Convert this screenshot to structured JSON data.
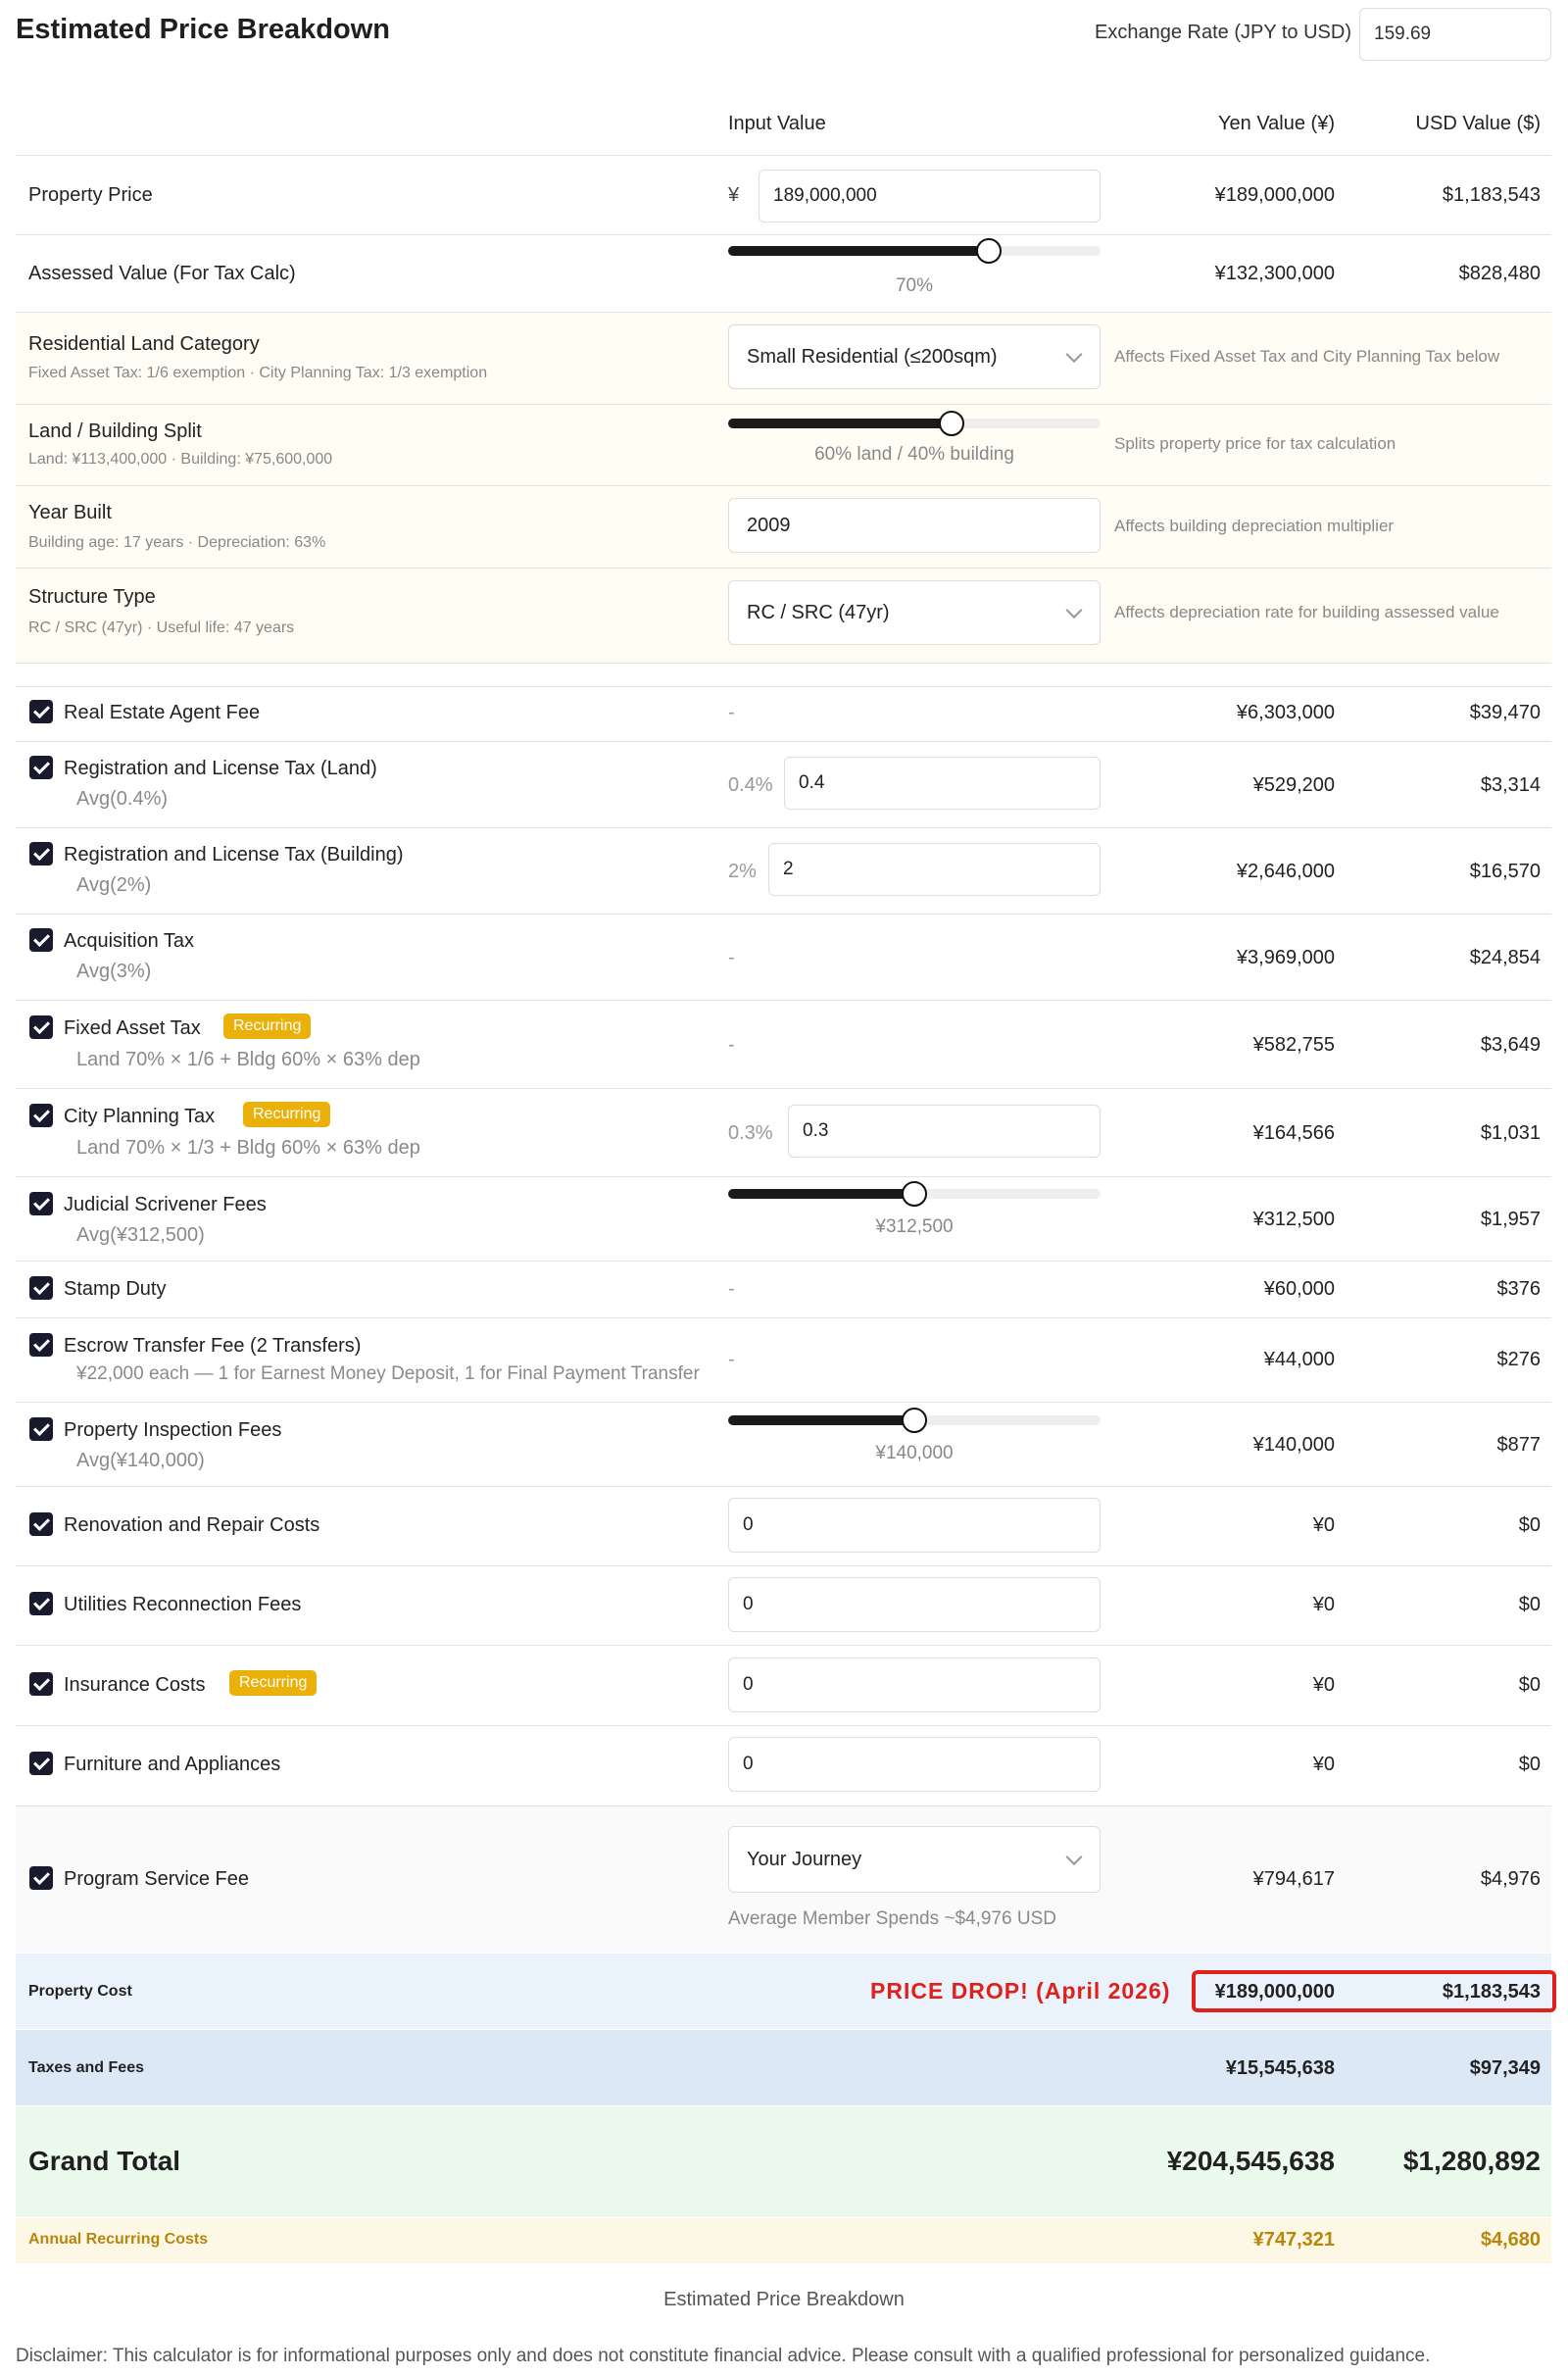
{
  "header": {
    "title": "Estimated Price Breakdown",
    "exchange_rate_label": "Exchange Rate (JPY to USD)",
    "exchange_rate_value": "159.69"
  },
  "columns": {
    "input": "Input Value",
    "yen": "Yen Value (¥)",
    "usd": "USD Value ($)"
  },
  "property_price": {
    "label": "Property Price",
    "currency_symbol": "¥",
    "value": "189,000,000",
    "yen": "¥189,000,000",
    "usd": "$1,183,543"
  },
  "assessed_value": {
    "label": "Assessed Value (For Tax Calc)",
    "slider_label": "70%",
    "slider_level": 0.7,
    "yen": "¥132,300,000",
    "usd": "$828,480"
  },
  "land_category": {
    "label": "Residential Land Category",
    "sub": "Fixed Asset Tax: 1/6 exemption · City Planning Tax: 1/3 exemption",
    "selected": "Small Residential (≤200sqm)",
    "note": "Affects Fixed Asset Tax and City Planning Tax below"
  },
  "land_split": {
    "label": "Land / Building Split",
    "sub": "Land: ¥113,400,000 · Building: ¥75,600,000",
    "slider_label": "60% land / 40% building",
    "slider_level": 0.6,
    "note": "Splits property price for tax calculation"
  },
  "year_built": {
    "label": "Year Built",
    "sub": "Building age: 17 years · Depreciation: 63%",
    "value": "2009",
    "note": "Affects building depreciation multiplier"
  },
  "structure": {
    "label": "Structure Type",
    "sub": "RC / SRC (47yr) · Useful life: 47 years",
    "selected": "RC / SRC (47yr)",
    "note": "Affects depreciation rate for building assessed value"
  },
  "fees": [
    {
      "label": "Real Estate Agent Fee",
      "dash": "-",
      "yen": "¥6,303,000",
      "usd": "$39,470"
    },
    {
      "label": "Registration and License Tax (Land)",
      "sub": "Avg(0.4%)",
      "pct": "0.4%",
      "value": "0.4",
      "yen": "¥529,200",
      "usd": "$3,314"
    },
    {
      "label": "Registration and License Tax (Building)",
      "sub": "Avg(2%)",
      "pct": "2%",
      "value": "2",
      "yen": "¥2,646,000",
      "usd": "$16,570"
    },
    {
      "label": "Acquisition Tax",
      "sub": "Avg(3%)",
      "dash": "-",
      "yen": "¥3,969,000",
      "usd": "$24,854"
    },
    {
      "label": "Fixed Asset Tax",
      "badge": "Recurring",
      "sub": "Land 70% × 1/6 + Bldg 60% × 63% dep",
      "dash": "-",
      "yen": "¥582,755",
      "usd": "$3,649"
    },
    {
      "label": "City Planning Tax",
      "badge": "Recurring",
      "sub": "Land 70% × 1/3 + Bldg 60% × 63% dep",
      "pct": "0.3%",
      "value": "0.3",
      "yen": "¥164,566",
      "usd": "$1,031"
    },
    {
      "label": "Judicial Scrivener Fees",
      "sub": "Avg(¥312,500)",
      "slider_label": "¥312,500",
      "slider_level": 0.5,
      "yen": "¥312,500",
      "usd": "$1,957"
    },
    {
      "label": "Stamp Duty",
      "dash": "-",
      "yen": "¥60,000",
      "usd": "$376"
    },
    {
      "label": "Escrow Transfer Fee (2 Transfers)",
      "sub": "¥22,000 each — 1 for Earnest Money Deposit, 1 for Final Payment Transfer",
      "dash": "-",
      "yen": "¥44,000",
      "usd": "$276"
    },
    {
      "label": "Property Inspection Fees",
      "sub": "Avg(¥140,000)",
      "slider_label": "¥140,000",
      "slider_level": 0.5,
      "yen": "¥140,000",
      "usd": "$877"
    },
    {
      "label": "Renovation and Repair Costs",
      "value": "0",
      "yen": "¥0",
      "usd": "$0"
    },
    {
      "label": "Utilities Reconnection Fees",
      "value": "0",
      "yen": "¥0",
      "usd": "$0"
    },
    {
      "label": "Insurance Costs",
      "badge": "Recurring",
      "value": "0",
      "yen": "¥0",
      "usd": "$0"
    },
    {
      "label": "Furniture and Appliances",
      "value": "0",
      "yen": "¥0",
      "usd": "$0"
    },
    {
      "label": "Program Service Fee",
      "selected": "Your Journey",
      "sub": "Average Member Spends ~$4,976 USD",
      "yen": "¥794,617",
      "usd": "$4,976"
    }
  ],
  "summary": {
    "property_cost": {
      "label": "Property Cost",
      "promo": "PRICE DROP! (April 2026)",
      "yen": "¥189,000,000",
      "usd": "$1,183,543"
    },
    "taxes_fees": {
      "label": "Taxes and Fees",
      "yen": "¥15,545,638",
      "usd": "$97,349"
    },
    "grand_total": {
      "label": "Grand Total",
      "yen": "¥204,545,638",
      "usd": "$1,280,892"
    },
    "annual": {
      "label": "Annual Recurring Costs",
      "yen": "¥747,321",
      "usd": "$4,680"
    }
  },
  "footer": {
    "caption": "Estimated Price Breakdown",
    "disclaimer": "Disclaimer: This calculator is for informational purposes only and does not constitute financial advice. Please consult with a qualified professional for personalized guidance."
  },
  "colors": {
    "badge": "#ebb10a",
    "promo_red": "#e0201a",
    "property_cost_bg": "#eaf2fb",
    "taxes_bg": "#dde8f7",
    "grand_total_bg": "#ecfaee",
    "annual_bg": "#fdf8e6",
    "annual_text": "#b8860b",
    "setting_bg": "#fffdf4"
  }
}
